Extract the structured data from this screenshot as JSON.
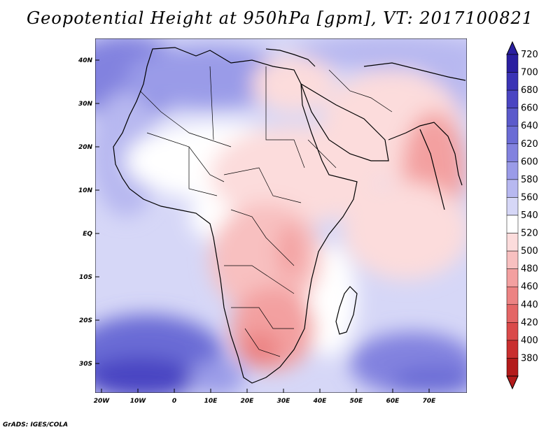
{
  "title": "Geopotential Height at 950hPa [gpm], VT: 2017100821",
  "credit": "GrADS: IGES/COLA",
  "lat_labels": [
    "40N",
    "30N",
    "20N",
    "10N",
    "EQ",
    "10S",
    "20S",
    "30S"
  ],
  "lon_labels": [
    "20W",
    "10W",
    "0",
    "10E",
    "20E",
    "30E",
    "40E",
    "50E",
    "60E",
    "70E"
  ],
  "colorbar": {
    "labels": [
      "720",
      "700",
      "680",
      "660",
      "640",
      "620",
      "600",
      "580",
      "560",
      "540",
      "520",
      "500",
      "480",
      "460",
      "440",
      "420",
      "400",
      "380"
    ],
    "colors": [
      "#2a1fa0",
      "#3a33b5",
      "#4a45c2",
      "#5b5acb",
      "#6b6cd5",
      "#8282df",
      "#9a9be8",
      "#b7b8f0",
      "#d6d7f7",
      "#ffffff",
      "#fcdcdc",
      "#f8c0c0",
      "#f3a0a0",
      "#ec8383",
      "#e46666",
      "#da4a4a",
      "#c92f2f",
      "#b31b1b"
    ]
  },
  "map": {
    "accent_blue": "#5b5acb",
    "accent_red": "#f3a0a0"
  }
}
